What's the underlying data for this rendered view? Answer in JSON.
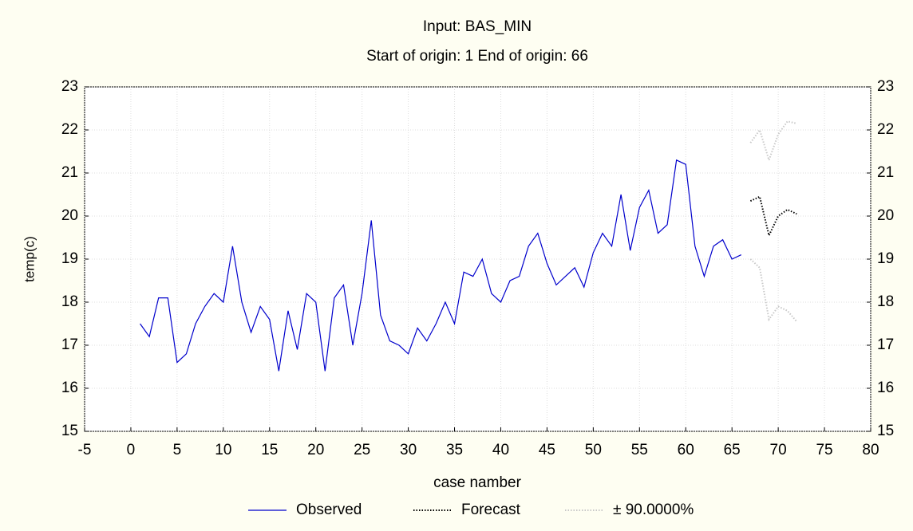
{
  "chart_data": {
    "type": "line",
    "title": "Input: BAS_MIN",
    "subtitle": "Start of origin: 1 End of origin: 66",
    "x_label": "case namber",
    "y_label": "temp(c)",
    "xlim": [
      -5,
      80
    ],
    "xticks": [
      -5,
      0,
      5,
      10,
      15,
      20,
      25,
      30,
      35,
      40,
      45,
      50,
      55,
      60,
      65,
      70,
      75,
      80
    ],
    "ylim": [
      15,
      23
    ],
    "yticks": [
      15,
      16,
      17,
      18,
      19,
      20,
      21,
      22,
      23
    ],
    "grid": true,
    "legend": "bottom",
    "series": [
      {
        "name": "Observed",
        "color": "#0000cc",
        "style": "solid",
        "x": [
          1,
          2,
          3,
          4,
          5,
          6,
          7,
          8,
          9,
          10,
          11,
          12,
          13,
          14,
          15,
          16,
          17,
          18,
          19,
          20,
          21,
          22,
          23,
          24,
          25,
          26,
          27,
          28,
          29,
          30,
          31,
          32,
          33,
          34,
          35,
          36,
          37,
          38,
          39,
          40,
          41,
          42,
          43,
          44,
          45,
          46,
          47,
          48,
          49,
          50,
          51,
          52,
          53,
          54,
          55,
          56,
          57,
          58,
          59,
          60,
          61,
          62,
          63,
          64,
          65,
          66
        ],
        "values": [
          17.5,
          17.2,
          18.1,
          18.1,
          16.6,
          16.8,
          17.5,
          17.9,
          18.2,
          18.0,
          19.3,
          18.0,
          17.3,
          17.9,
          17.6,
          16.4,
          17.8,
          16.9,
          18.2,
          18.0,
          16.4,
          18.1,
          18.4,
          17.0,
          18.2,
          19.9,
          17.7,
          17.1,
          17.0,
          16.8,
          17.4,
          17.1,
          17.5,
          18.0,
          17.5,
          18.7,
          18.6,
          19.0,
          18.2,
          18.0,
          18.5,
          18.6,
          19.3,
          19.6,
          18.9,
          18.4,
          18.6,
          18.8,
          18.35,
          19.15,
          19.6,
          19.3,
          20.5,
          19.2,
          20.2,
          20.6,
          19.6,
          19.8,
          21.3,
          21.2,
          19.3,
          18.6,
          19.3,
          19.45,
          19.0,
          19.1
        ]
      },
      {
        "name": "Forecast",
        "color": "#000000",
        "style": "dotted",
        "x": [
          67,
          68,
          69,
          70,
          71,
          72
        ],
        "values": [
          20.35,
          20.45,
          19.55,
          20.0,
          20.15,
          20.05
        ]
      },
      {
        "name": "± 90.0000%",
        "color": "#c8c8c8",
        "style": "dotted",
        "x": [
          67,
          68,
          69,
          70,
          71,
          72
        ],
        "upper": [
          21.7,
          22.0,
          21.3,
          21.9,
          22.2,
          22.15
        ],
        "lower": [
          19.0,
          18.8,
          17.6,
          17.9,
          17.8,
          17.55
        ]
      }
    ]
  }
}
